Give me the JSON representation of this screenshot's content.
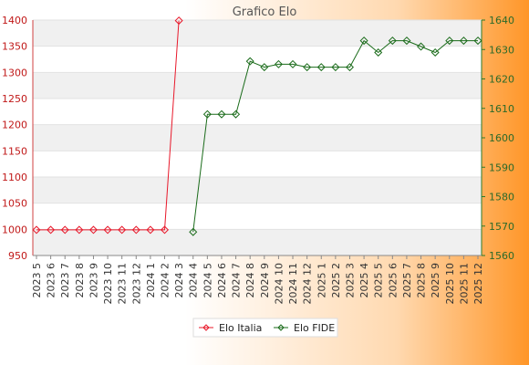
{
  "chart_data": {
    "type": "line",
    "title": "Grafico Elo",
    "categories": [
      "2023 5",
      "2023 6",
      "2023 7",
      "2023 8",
      "2023 9",
      "2023 10",
      "2023 11",
      "2023 12",
      "2024 1",
      "2024 2",
      "2024 3",
      "2024 4",
      "2024 5",
      "2024 6",
      "2024 7",
      "2024 8",
      "2024 9",
      "2024 10",
      "2024 11",
      "2024 12",
      "2025 1",
      "2025 2",
      "2025 3",
      "2025 4",
      "2025 5",
      "2025 6",
      "2025 7",
      "2025 8",
      "2025 9",
      "2025 10",
      "2025 11",
      "2025 12"
    ],
    "y_left": {
      "min": 950,
      "max": 1400,
      "ticks": [
        950,
        1000,
        1050,
        1100,
        1150,
        1200,
        1250,
        1300,
        1350,
        1400
      ]
    },
    "y_right": {
      "min": 1560,
      "max": 1640,
      "ticks": [
        1560,
        1570,
        1580,
        1590,
        1600,
        1610,
        1620,
        1630,
        1640
      ]
    },
    "series": [
      {
        "name": "Elo Italia",
        "axis": "left",
        "color": "#e8182a",
        "values": [
          999,
          999,
          999,
          999,
          999,
          999,
          999,
          999,
          999,
          999,
          1399,
          null,
          null,
          null,
          null,
          null,
          null,
          null,
          null,
          null,
          null,
          null,
          null,
          null,
          null,
          null,
          null,
          null,
          null,
          null,
          null,
          null
        ]
      },
      {
        "name": "Elo FIDE",
        "axis": "right",
        "color": "#1a6b1a",
        "values": [
          null,
          null,
          null,
          null,
          null,
          null,
          null,
          null,
          null,
          null,
          null,
          1568,
          1608,
          1608,
          1608,
          1626,
          1624,
          1625,
          1625,
          1624,
          1624,
          1624,
          1624,
          1633,
          1629,
          1633,
          1633,
          1631,
          1629,
          1633,
          1633,
          1633
        ]
      }
    ],
    "legend_position": "bottom-center",
    "grid": "horizontal-bands"
  }
}
